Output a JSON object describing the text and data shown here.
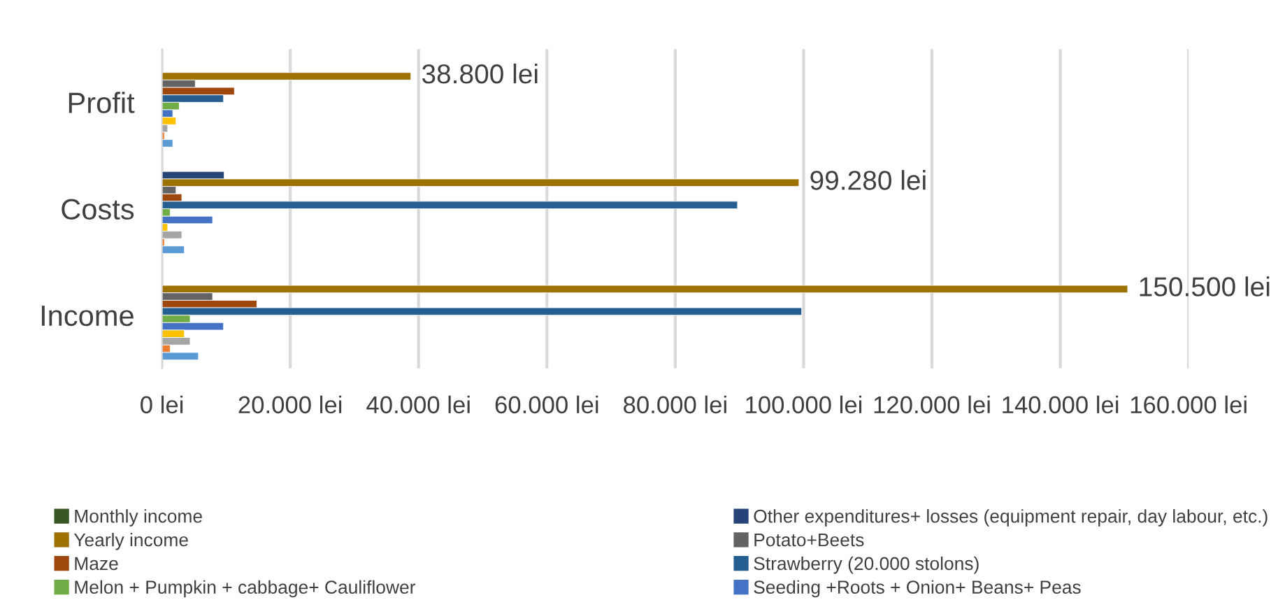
{
  "chart_data": {
    "type": "bar",
    "orientation": "horizontal",
    "categories": [
      "Profit",
      "Costs",
      "Income"
    ],
    "series": [
      {
        "name": "Monthly income",
        "color": "#375623",
        "values": [
          null,
          null,
          null
        ]
      },
      {
        "name": "Other expenditures+ losses (equipment repair, day labour, etc.)",
        "color": "#264478",
        "values": [
          null,
          9700,
          null
        ]
      },
      {
        "name": "Yearly income",
        "color": "#9e7200",
        "values": [
          38800,
          99280,
          150500
        ],
        "value_labels": [
          "38.800 lei",
          "99.280 lei",
          "150.500 lei"
        ]
      },
      {
        "name": "Potato+Beets",
        "color": "#636363",
        "values": [
          5200,
          2200,
          7900
        ]
      },
      {
        "name": "Maze",
        "color": "#9e480e",
        "values": [
          11300,
          3100,
          14800
        ]
      },
      {
        "name": "Strawberry (20.000 stolons)",
        "color": "#255e91",
        "values": [
          9600,
          89700,
          99700
        ]
      },
      {
        "name": "Melon + Pumpkin + cabbage+ Cauliflower",
        "color": "#70ad47",
        "values": [
          2700,
          1300,
          4400
        ]
      },
      {
        "name": "Seeding +Roots + Onion+ Beans+ Peas",
        "color": "#4472c4",
        "values": [
          1700,
          7900,
          9600
        ]
      },
      {
        "color": "#ffc000",
        "values": [
          2200,
          900,
          3500
        ]
      },
      {
        "color": "#a5a5a5",
        "values": [
          900,
          3100,
          4400
        ]
      },
      {
        "color": "#ed7d31",
        "values": [
          400,
          400,
          1300
        ]
      },
      {
        "color": "#5b9bd5",
        "values": [
          1700,
          3500,
          5700
        ]
      }
    ],
    "xlim": [
      0,
      160000
    ],
    "xticks": [
      {
        "value": 0,
        "label": "0 lei"
      },
      {
        "value": 20000,
        "label": "20.000 lei"
      },
      {
        "value": 40000,
        "label": "40.000 lei"
      },
      {
        "value": 60000,
        "label": "60.000 lei"
      },
      {
        "value": 80000,
        "label": "80.000 lei"
      },
      {
        "value": 100000,
        "label": "100.000 lei"
      },
      {
        "value": 120000,
        "label": "120.000 lei"
      },
      {
        "value": 140000,
        "label": "140.000 lei"
      },
      {
        "value": 160000,
        "label": "160.000 lei"
      }
    ],
    "grid": "x",
    "legend": "bottom"
  }
}
